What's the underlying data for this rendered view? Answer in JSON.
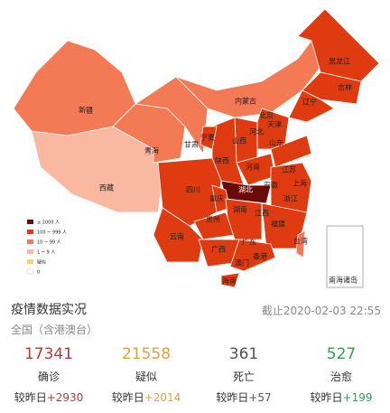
{
  "map": {
    "regions": [
      "新疆",
      "西藏",
      "青海",
      "甘肃",
      "宁夏",
      "内蒙古",
      "黑龙江",
      "吉林",
      "辽宁",
      "北京",
      "天津",
      "河北",
      "山西",
      "陕西",
      "山东",
      "河南",
      "湖北",
      "安徽",
      "江苏",
      "上海",
      "浙江",
      "四川",
      "重庆",
      "湖南",
      "江西",
      "福建",
      "贵州",
      "云南",
      "广西",
      "广东",
      "台湾",
      "香港",
      "澳门",
      "海南",
      "南海诸岛"
    ]
  },
  "legend": {
    "items": [
      "≥ 1000 人",
      "100 ~ 999 人",
      "10 ~ 99 人",
      "1 ~ 9 人",
      "疑似",
      "0"
    ]
  },
  "stats": {
    "title": "疫情数据实况",
    "updated": "截止2020-02-03 22:55",
    "scope": "全国（含港澳台）",
    "items": [
      {
        "value": 17341,
        "label": "确诊",
        "compare": "较昨日",
        "change": "+2930"
      },
      {
        "value": 21558,
        "label": "疑似",
        "compare": "较昨日",
        "change": "+2014"
      },
      {
        "value": 361,
        "label": "死亡",
        "compare": "较昨日",
        "change": "+57"
      },
      {
        "value": 527,
        "label": "治愈",
        "compare": "较昨日",
        "change": "+199"
      }
    ]
  }
}
